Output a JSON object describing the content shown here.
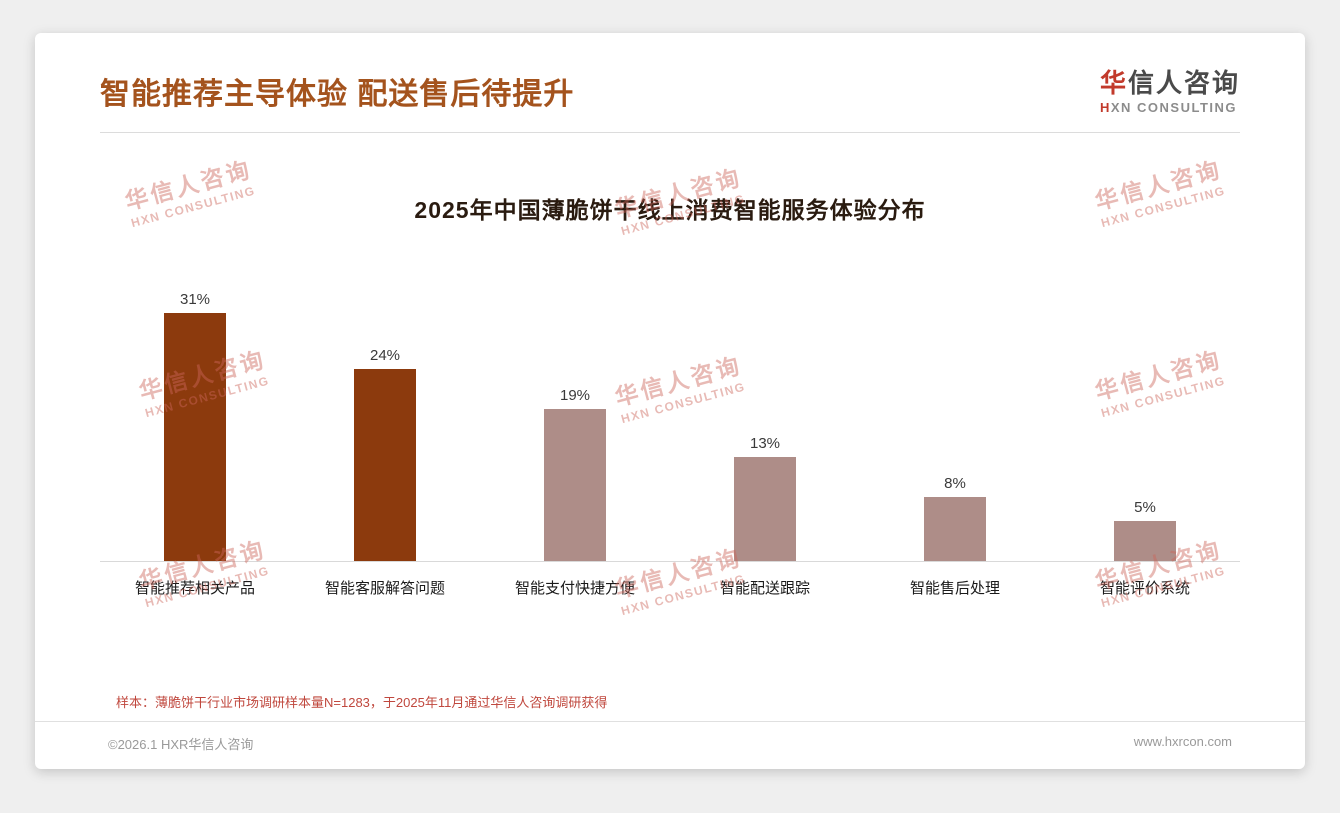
{
  "page": {
    "title": "智能推荐主导体验 配送售后待提升",
    "logo": {
      "cn_first": "华",
      "cn_rest": "信人咨询",
      "en_first": "H",
      "en_rest": "XN CONSULTING"
    },
    "watermark": {
      "cn": "华信人咨询",
      "en": "HXN CONSULTING"
    },
    "note": "样本：薄脆饼干行业市场调研样本量N=1283，于2025年11月通过华信人咨询调研获得",
    "footer": {
      "copyright": "©2026.1 HXR华信人咨询",
      "website": "www.hxrcon.com"
    },
    "colors": {
      "accent_brown": "#a4531d",
      "bar_dark": "#8c3a0d",
      "bar_light": "#ae8d88",
      "note_red": "#c0483e",
      "logo_red": "#c23a2b"
    }
  },
  "chart_data": {
    "type": "bar",
    "title": "2025年中国薄脆饼干线上消费智能服务体验分布",
    "categories": [
      "智能推荐相关产品",
      "智能客服解答问题",
      "智能支付快捷方便",
      "智能配送跟踪",
      "智能售后处理",
      "智能评价系统"
    ],
    "values": [
      31,
      24,
      19,
      13,
      8,
      5
    ],
    "value_labels": [
      "31%",
      "24%",
      "19%",
      "13%",
      "8%",
      "5%"
    ],
    "bar_colors": [
      "#8c3a0d",
      "#8c3a0d",
      "#ae8d88",
      "#ae8d88",
      "#ae8d88",
      "#ae8d88"
    ],
    "unit": "%",
    "ylim": [
      0,
      35
    ],
    "grid": false,
    "legend": false
  }
}
